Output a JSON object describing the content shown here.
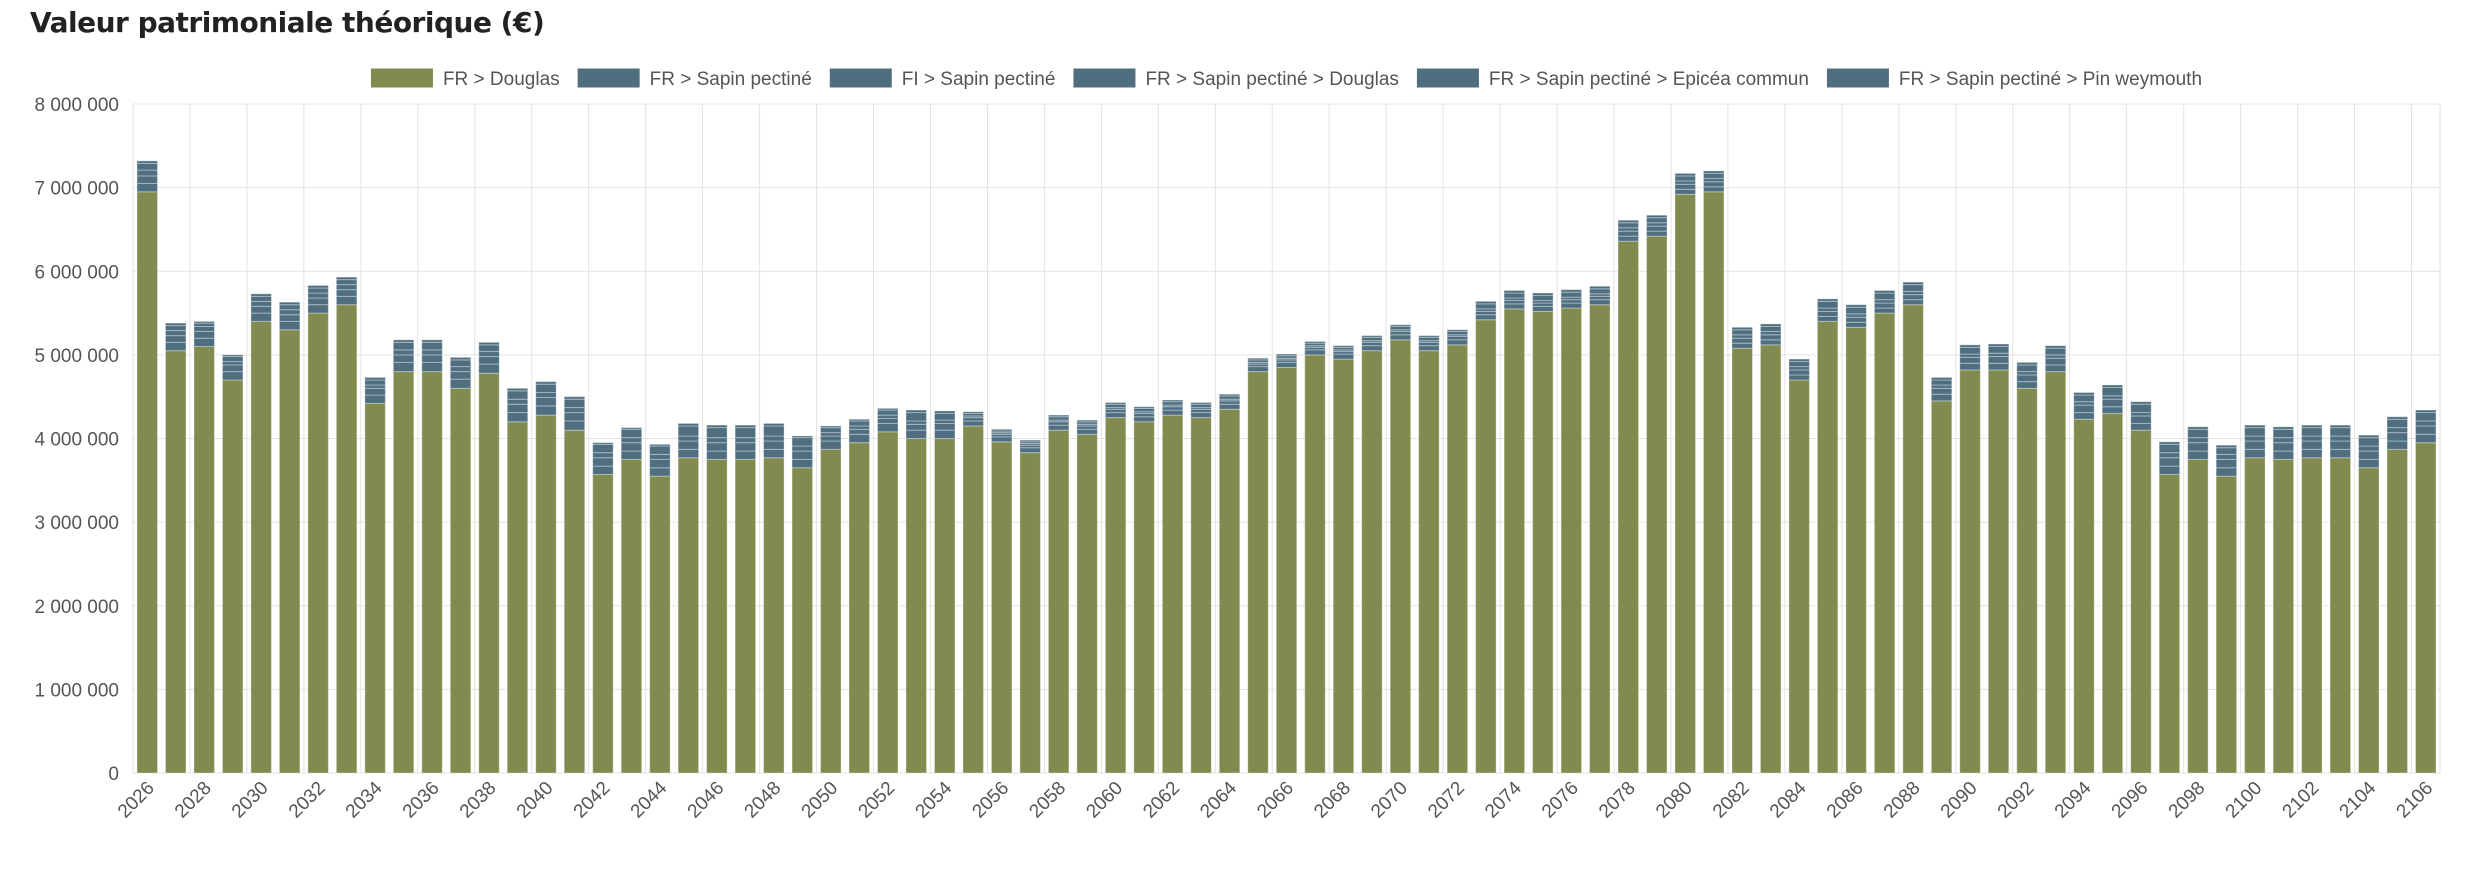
{
  "title": "Valeur patrimoniale théorique (€)",
  "chart_data": {
    "type": "bar",
    "stacked": true,
    "title": "Valeur patrimoniale théorique (€)",
    "xlabel": "",
    "ylabel": "",
    "ylim": [
      0,
      8000000
    ],
    "yticks": [
      0,
      1000000,
      2000000,
      3000000,
      4000000,
      5000000,
      6000000,
      7000000,
      8000000
    ],
    "ytick_labels": [
      "0",
      "1 000 000",
      "2 000 000",
      "3 000 000",
      "4 000 000",
      "5 000 000",
      "6 000 000",
      "7 000 000",
      "8 000 000"
    ],
    "grid": true,
    "legend_position": "top",
    "categories": [
      2026,
      2027,
      2028,
      2029,
      2030,
      2031,
      2032,
      2033,
      2034,
      2035,
      2036,
      2037,
      2038,
      2039,
      2040,
      2041,
      2042,
      2043,
      2044,
      2045,
      2046,
      2047,
      2048,
      2049,
      2050,
      2051,
      2052,
      2053,
      2054,
      2055,
      2056,
      2057,
      2058,
      2059,
      2060,
      2061,
      2062,
      2063,
      2064,
      2065,
      2066,
      2067,
      2068,
      2069,
      2070,
      2071,
      2072,
      2073,
      2074,
      2075,
      2076,
      2077,
      2078,
      2079,
      2080,
      2081,
      2082,
      2083,
      2084,
      2085,
      2086,
      2087,
      2088,
      2089,
      2090,
      2091,
      2092,
      2093,
      2094,
      2095,
      2096,
      2097,
      2098,
      2099,
      2100,
      2101,
      2102,
      2103,
      2104,
      2105,
      2106
    ],
    "xtick_labels": [
      "2026",
      "2028",
      "2030",
      "2032",
      "2034",
      "2036",
      "2038",
      "2040",
      "2042",
      "2044",
      "2046",
      "2048",
      "2050",
      "2052",
      "2054",
      "2056",
      "2058",
      "2060",
      "2062",
      "2064",
      "2066",
      "2068",
      "2070",
      "2072",
      "2074",
      "2076",
      "2078",
      "2080",
      "2082",
      "2084",
      "2086",
      "2088",
      "2090",
      "2092",
      "2094",
      "2096",
      "2098",
      "2100",
      "2102",
      "2104",
      "2106"
    ],
    "series": [
      {
        "name": "FR > Douglas",
        "color": "#818b4f",
        "values": [
          6950000,
          5050000,
          5100000,
          4700000,
          5400000,
          5300000,
          5500000,
          5600000,
          4420000,
          4800000,
          4800000,
          4600000,
          4780000,
          4200000,
          4280000,
          4100000,
          3570000,
          3750000,
          3550000,
          3770000,
          3750000,
          3750000,
          3770000,
          3650000,
          3870000,
          3950000,
          4080000,
          4000000,
          4000000,
          4150000,
          3960000,
          3830000,
          4100000,
          4050000,
          4250000,
          4200000,
          4280000,
          4250000,
          4350000,
          4800000,
          4850000,
          5000000,
          4950000,
          5050000,
          5180000,
          5050000,
          5120000,
          5420000,
          5550000,
          5520000,
          5560000,
          5600000,
          6360000,
          6420000,
          6920000,
          6950000,
          5080000,
          5120000,
          4700000,
          5400000,
          5330000,
          5500000,
          5600000,
          4450000,
          4820000,
          4820000,
          4600000,
          4800000,
          4230000,
          4300000,
          4100000,
          3570000,
          3750000,
          3550000,
          3770000,
          3750000,
          3770000,
          3770000,
          3650000,
          3870000,
          3950000
        ]
      },
      {
        "name": "FR > Sapin pectiné",
        "color": "#4f6f80",
        "values": [
          100000,
          100000,
          100000,
          100000,
          100000,
          100000,
          100000,
          100000,
          100000,
          110000,
          110000,
          110000,
          110000,
          110000,
          110000,
          110000,
          100000,
          100000,
          100000,
          100000,
          100000,
          100000,
          100000,
          100000,
          100000,
          100000,
          100000,
          100000,
          100000,
          60000,
          60000,
          60000,
          60000,
          60000,
          60000,
          60000,
          60000,
          60000,
          60000,
          60000,
          60000,
          60000,
          60000,
          60000,
          60000,
          60000,
          60000,
          60000,
          60000,
          60000,
          60000,
          60000,
          60000,
          60000,
          60000,
          60000,
          60000,
          60000,
          60000,
          60000,
          60000,
          60000,
          60000,
          80000,
          80000,
          80000,
          80000,
          80000,
          80000,
          80000,
          80000,
          100000,
          100000,
          100000,
          100000,
          100000,
          100000,
          100000,
          100000,
          100000,
          100000
        ]
      },
      {
        "name": "FI > Sapin pectiné",
        "color": "#4f6f80",
        "values": [
          90000,
          80000,
          80000,
          80000,
          80000,
          80000,
          80000,
          80000,
          80000,
          90000,
          90000,
          90000,
          90000,
          100000,
          100000,
          100000,
          100000,
          100000,
          100000,
          100000,
          100000,
          100000,
          100000,
          100000,
          60000,
          60000,
          60000,
          70000,
          80000,
          40000,
          30000,
          30000,
          40000,
          40000,
          40000,
          40000,
          40000,
          40000,
          40000,
          30000,
          30000,
          30000,
          30000,
          40000,
          40000,
          40000,
          40000,
          40000,
          40000,
          40000,
          40000,
          40000,
          60000,
          60000,
          60000,
          60000,
          60000,
          60000,
          60000,
          60000,
          60000,
          60000,
          60000,
          70000,
          70000,
          80000,
          80000,
          80000,
          90000,
          90000,
          90000,
          100000,
          100000,
          100000,
          100000,
          100000,
          100000,
          100000,
          100000,
          100000,
          100000
        ]
      },
      {
        "name": "FR > Sapin pectiné > Douglas",
        "color": "#4f6f80",
        "values": [
          70000,
          60000,
          60000,
          40000,
          60000,
          60000,
          60000,
          60000,
          40000,
          60000,
          60000,
          60000,
          60000,
          60000,
          60000,
          60000,
          60000,
          60000,
          60000,
          60000,
          60000,
          60000,
          60000,
          60000,
          40000,
          40000,
          40000,
          40000,
          40000,
          20000,
          20000,
          20000,
          20000,
          20000,
          20000,
          20000,
          20000,
          20000,
          20000,
          20000,
          20000,
          20000,
          20000,
          20000,
          20000,
          20000,
          20000,
          30000,
          30000,
          30000,
          30000,
          30000,
          40000,
          40000,
          40000,
          40000,
          40000,
          40000,
          40000,
          40000,
          40000,
          40000,
          40000,
          40000,
          40000,
          40000,
          40000,
          40000,
          40000,
          40000,
          40000,
          60000,
          60000,
          60000,
          60000,
          60000,
          60000,
          60000,
          60000,
          60000,
          60000
        ]
      },
      {
        "name": "FR > Sapin pectiné > Epicéa commun",
        "color": "#4f6f80",
        "values": [
          80000,
          60000,
          40000,
          60000,
          60000,
          60000,
          60000,
          60000,
          60000,
          90000,
          90000,
          80000,
          80000,
          100000,
          100000,
          100000,
          100000,
          100000,
          100000,
          120000,
          120000,
          120000,
          120000,
          100000,
          60000,
          60000,
          60000,
          100000,
          80000,
          30000,
          20000,
          20000,
          40000,
          30000,
          40000,
          40000,
          40000,
          40000,
          40000,
          30000,
          30000,
          30000,
          30000,
          40000,
          40000,
          40000,
          40000,
          60000,
          60000,
          60000,
          60000,
          60000,
          60000,
          60000,
          60000,
          60000,
          60000,
          60000,
          60000,
          80000,
          80000,
          80000,
          80000,
          60000,
          80000,
          80000,
          80000,
          80000,
          80000,
          100000,
          100000,
          100000,
          100000,
          80000,
          100000,
          100000,
          100000,
          100000,
          100000,
          100000,
          100000
        ]
      },
      {
        "name": "FR > Sapin pectiné > Pin weymouth",
        "color": "#4f6f80",
        "values": [
          30000,
          30000,
          20000,
          20000,
          30000,
          30000,
          30000,
          30000,
          30000,
          30000,
          30000,
          30000,
          30000,
          30000,
          30000,
          30000,
          20000,
          20000,
          20000,
          30000,
          30000,
          30000,
          30000,
          20000,
          20000,
          20000,
          20000,
          30000,
          30000,
          20000,
          20000,
          20000,
          20000,
          20000,
          20000,
          20000,
          20000,
          20000,
          20000,
          20000,
          20000,
          20000,
          20000,
          20000,
          20000,
          20000,
          20000,
          30000,
          30000,
          30000,
          30000,
          30000,
          30000,
          30000,
          30000,
          30000,
          30000,
          30000,
          30000,
          30000,
          30000,
          30000,
          30000,
          30000,
          30000,
          30000,
          30000,
          30000,
          30000,
          30000,
          30000,
          30000,
          30000,
          30000,
          30000,
          30000,
          30000,
          30000,
          30000,
          30000,
          30000
        ]
      }
    ]
  }
}
